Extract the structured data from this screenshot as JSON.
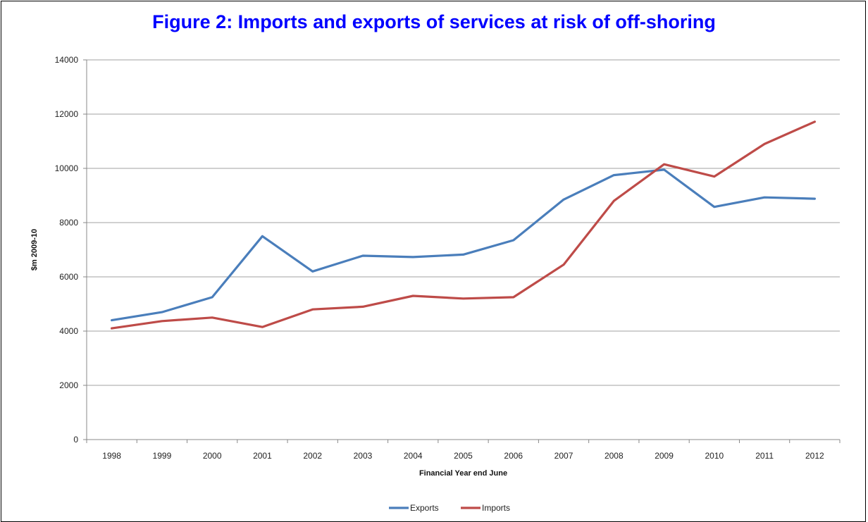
{
  "chart_data": {
    "type": "line",
    "title": "Figure 2:  Imports and exports of services at risk of off-shoring",
    "xlabel": "Financial Year end June",
    "ylabel": "$m 2009-10",
    "ylim": [
      0,
      14000
    ],
    "yticks": [
      0,
      2000,
      4000,
      6000,
      8000,
      10000,
      12000,
      14000
    ],
    "grid": true,
    "legend_position": "bottom",
    "categories": [
      "1998",
      "1999",
      "2000",
      "2001",
      "2002",
      "2003",
      "2004",
      "2005",
      "2006",
      "2007",
      "2008",
      "2009",
      "2010",
      "2011",
      "2012"
    ],
    "series": [
      {
        "name": "Exports",
        "color": "#4A7EBB",
        "values": [
          4400,
          4700,
          5250,
          7500,
          6200,
          6780,
          6730,
          6820,
          7350,
          8850,
          9750,
          9950,
          8580,
          8930,
          8880
        ]
      },
      {
        "name": "Imports",
        "color": "#BE4B48",
        "values": [
          4100,
          4370,
          4500,
          4150,
          4800,
          4900,
          5300,
          5200,
          5250,
          6450,
          8800,
          10150,
          9700,
          10900,
          11720
        ]
      }
    ]
  }
}
